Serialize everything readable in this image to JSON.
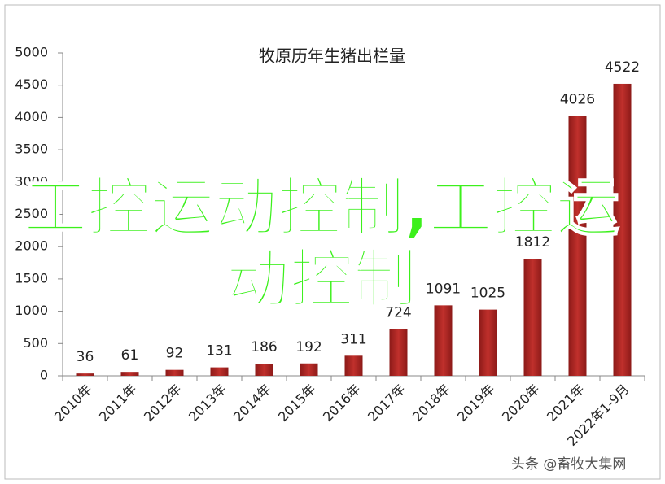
{
  "chart_data": {
    "type": "bar",
    "title": "牧原历年生猪出栏量",
    "categories": [
      "2010年",
      "2011年",
      "2012年",
      "2013年",
      "2014年",
      "2015年",
      "2016年",
      "2017年",
      "2018年",
      "2019年",
      "2020年",
      "2021年",
      "2022年1-9月"
    ],
    "values": [
      36,
      61,
      92,
      131,
      186,
      192,
      311,
      724,
      1091,
      1025,
      1812,
      4026,
      4522
    ],
    "color": "#c0302c",
    "ylim": [
      0,
      5000
    ],
    "yticks": [
      0,
      500,
      1000,
      1500,
      2000,
      2500,
      3000,
      3500,
      4000,
      4500,
      5000
    ],
    "grid": false,
    "annotations": [
      "工控运动控制,工控运动控制",
      "头条 @畜牧大集网"
    ]
  }
}
